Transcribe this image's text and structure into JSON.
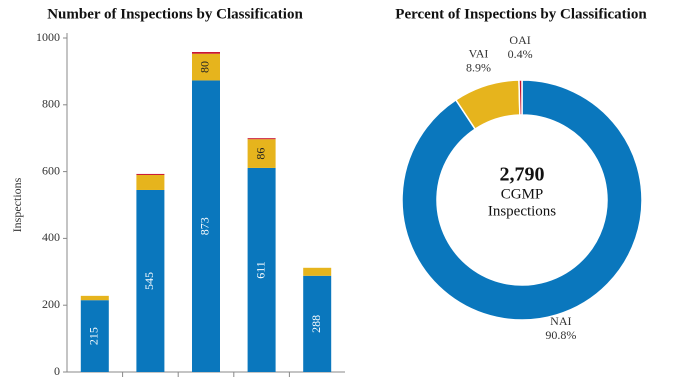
{
  "chart_data": [
    {
      "type": "bar",
      "stacked": true,
      "title": "Number of Inspections by Classification",
      "y_label": "Inspections",
      "categories": [
        null,
        null,
        null,
        null,
        null
      ],
      "series": [
        {
          "color": "#0a77bd",
          "values": [
            215,
            545,
            873,
            611,
            288
          ],
          "value_labels": [
            "215",
            "545",
            "873",
            "611",
            "288"
          ]
        },
        {
          "color": "#e6b41d",
          "values": [
            13,
            45,
            80,
            86,
            24
          ],
          "value_labels": [
            null,
            null,
            "80",
            "86",
            null
          ]
        },
        {
          "color": "#c8102e",
          "values": [
            0,
            3,
            5,
            3,
            0
          ]
        }
      ],
      "ylim": [
        0,
        1000
      ],
      "yticks": [
        0,
        200,
        400,
        600,
        800,
        1000
      ],
      "grid": false
    },
    {
      "type": "pie",
      "donut": true,
      "title": "Percent of Inspections by Classification",
      "categories": [
        "NAI",
        "VAI",
        "OAI"
      ],
      "values": [
        90.8,
        8.9,
        0.4
      ],
      "value_labels": [
        "90.8%",
        "8.9%",
        "0.4%"
      ],
      "colors": [
        "#0a77bd",
        "#e6b41d",
        "#c8102e"
      ],
      "center_text": [
        "2,790",
        "CGMP",
        "Inspections"
      ]
    }
  ]
}
